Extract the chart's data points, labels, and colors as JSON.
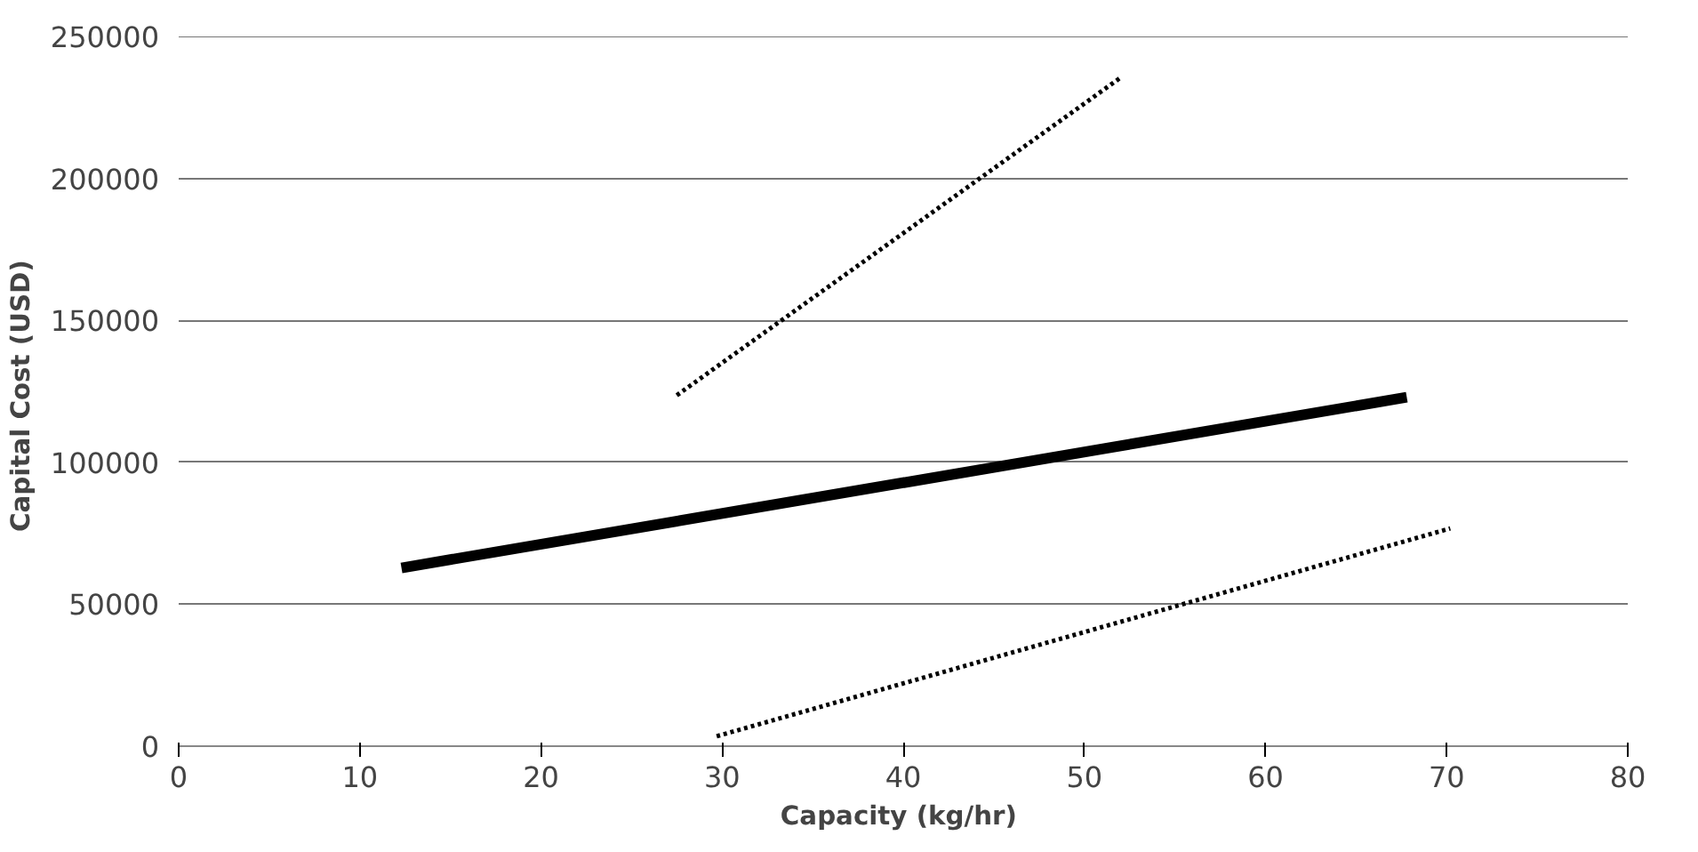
{
  "chart_data": {
    "type": "line",
    "xlabel": "Capacity  (kg/hr)",
    "ylabel": "Capital Cost  (USD)",
    "xlim": [
      0,
      80
    ],
    "xticks": [
      0,
      10,
      20,
      30,
      40,
      50,
      60,
      70,
      80
    ],
    "ylim": [
      0,
      250000
    ],
    "yticks": [
      0,
      50000,
      100000,
      150000,
      200000,
      250000
    ],
    "grid": "y",
    "marker": "none",
    "series": [
      {
        "color": "#000000",
        "line_style": "solid",
        "x": [
          12.3,
          67.8
        ],
        "values": [
          62800,
          122900
        ]
      },
      {
        "color": "#000000",
        "line_style": "dotted",
        "x": [
          27.5,
          52
        ],
        "values": [
          123600,
          235500
        ]
      },
      {
        "color": "#000000",
        "line_style": "dotted",
        "x": [
          29.7,
          70.2
        ],
        "values": [
          3500,
          76700
        ]
      }
    ]
  }
}
